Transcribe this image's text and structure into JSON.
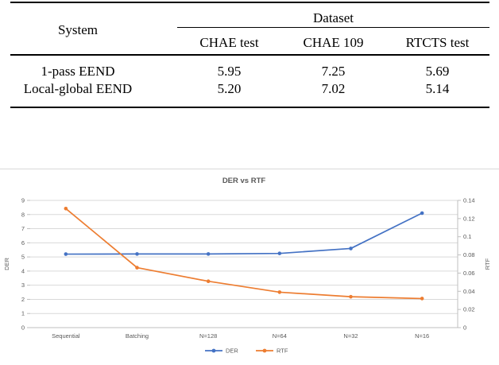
{
  "table": {
    "system_header": "System",
    "col_group_header": "Dataset",
    "columns": [
      "CHAE test",
      "CHAE 109",
      "RTCTS test"
    ],
    "rows": [
      {
        "system": "1-pass EEND",
        "values": [
          "5.95",
          "7.25",
          "5.69"
        ]
      },
      {
        "system": "Local-global EEND",
        "values": [
          "5.20",
          "7.02",
          "5.14"
        ]
      }
    ]
  },
  "chart_data": {
    "type": "line",
    "title": "DER vs RTF",
    "categories": [
      "Sequential",
      "Batching",
      "N=128",
      "N=64",
      "N=32",
      "N=16"
    ],
    "series": [
      {
        "name": "DER",
        "axis": "left",
        "color": "#4472C4",
        "values": [
          5.2,
          5.21,
          5.21,
          5.25,
          5.6,
          8.1
        ]
      },
      {
        "name": "RTF",
        "axis": "right",
        "color": "#ED7D31",
        "values": [
          0.131,
          0.066,
          0.051,
          0.039,
          0.034,
          0.032
        ]
      }
    ],
    "left_axis": {
      "label": "DER",
      "min": 0,
      "max": 9,
      "ticks": [
        "0",
        "1",
        "2",
        "3",
        "4",
        "5",
        "6",
        "7",
        "8",
        "9"
      ]
    },
    "right_axis": {
      "label": "RTF",
      "min": 0,
      "max": 0.14,
      "ticks": [
        "0",
        "0.02",
        "0.04",
        "0.06",
        "0.08",
        "0.1",
        "0.12",
        "0.14"
      ]
    },
    "grid": true,
    "legend_position": "bottom",
    "colors": {
      "gridline": "#d9d9d9",
      "axis": "#bfbfbf",
      "tick_text": "#595959",
      "title_text": "#404040"
    }
  }
}
